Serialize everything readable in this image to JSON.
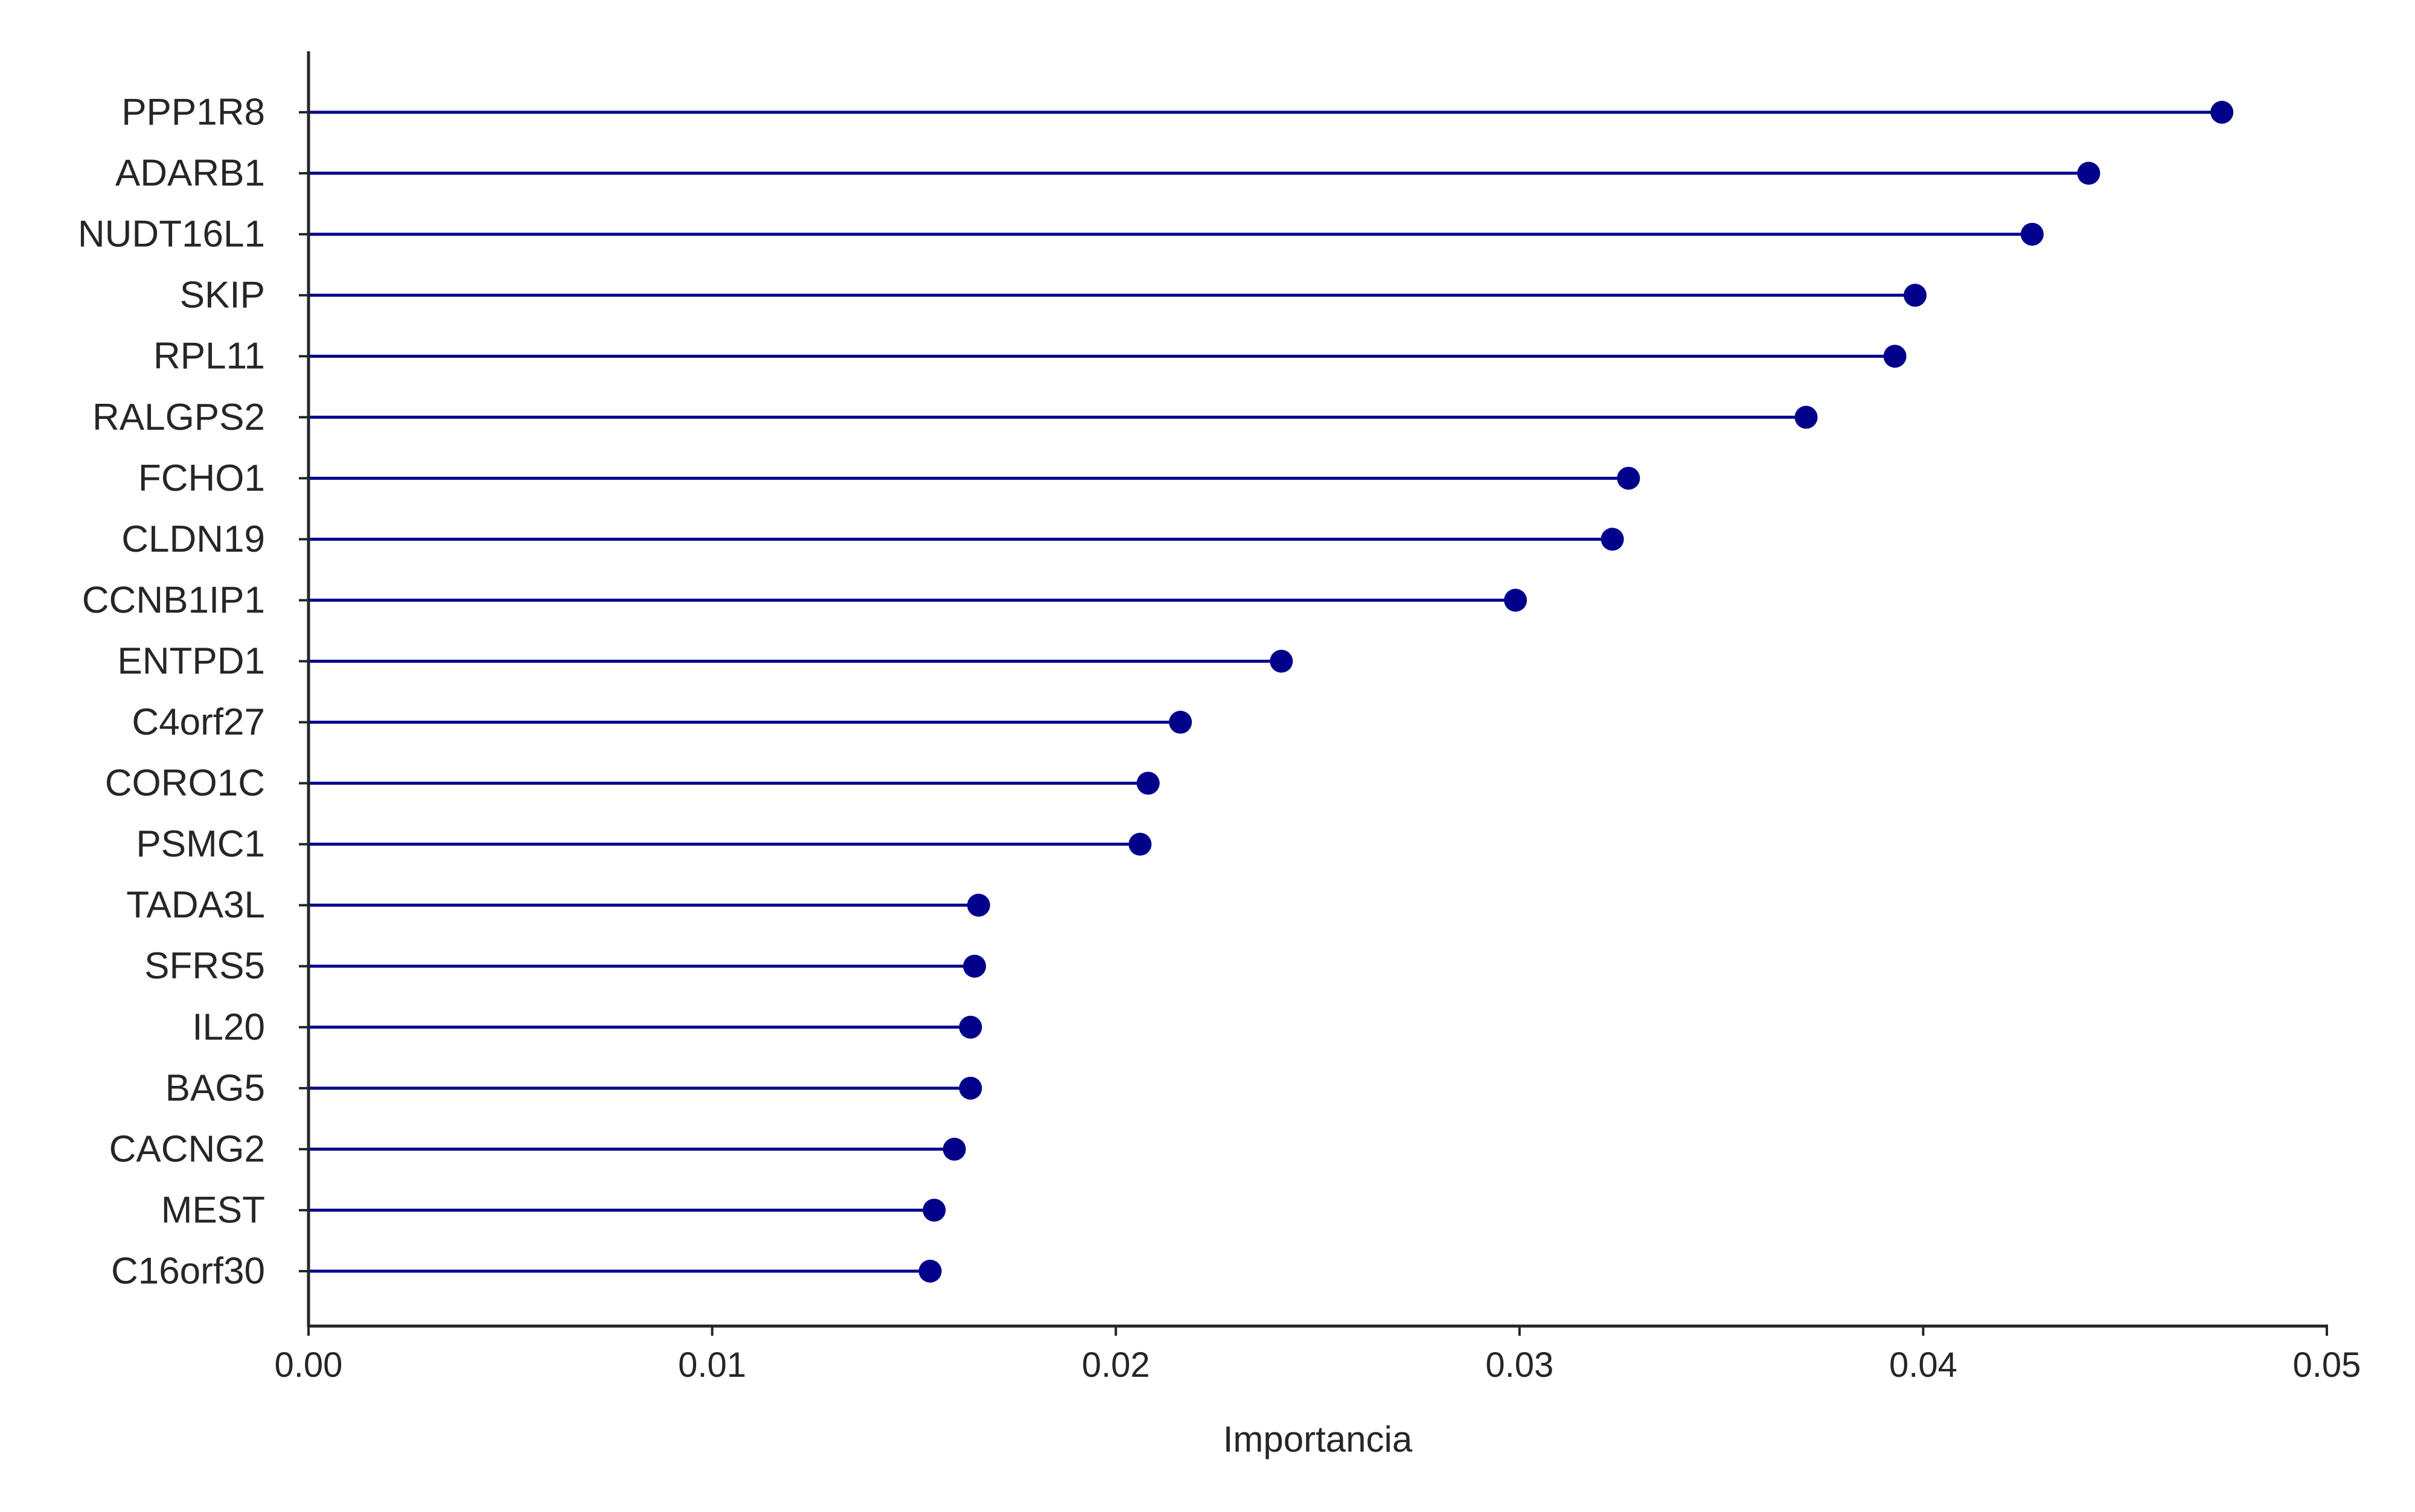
{
  "chart_data": {
    "type": "lollipop",
    "orientation": "horizontal",
    "title": "",
    "xlabel": "Importancia",
    "ylabel": "",
    "xlim": [
      0.0,
      0.05
    ],
    "xticks": [
      0.0,
      0.01,
      0.02,
      0.03,
      0.04,
      0.05
    ],
    "xtick_labels": [
      "0.00",
      "0.01",
      "0.02",
      "0.03",
      "0.04",
      "0.05"
    ],
    "grid": false,
    "legend": "none",
    "color": "#00008b",
    "axis_color": "#262626",
    "categories": [
      "PPP1R8",
      "ADARB1",
      "NUDT16L1",
      "SKIP",
      "RPL11",
      "RALGPS2",
      "FCHO1",
      "CLDN19",
      "CCNB1IP1",
      "ENTPD1",
      "C4orf27",
      "CORO1C",
      "PSMC1",
      "TADA3L",
      "SFRS5",
      "IL20",
      "BAG5",
      "CACNG2",
      "MEST",
      "C16orf30"
    ],
    "values": [
      0.0474,
      0.0441,
      0.0427,
      0.0398,
      0.0393,
      0.0371,
      0.0327,
      0.0323,
      0.0299,
      0.0241,
      0.0216,
      0.0208,
      0.0206,
      0.0166,
      0.0165,
      0.0164,
      0.0164,
      0.016,
      0.0155,
      0.0154
    ]
  }
}
